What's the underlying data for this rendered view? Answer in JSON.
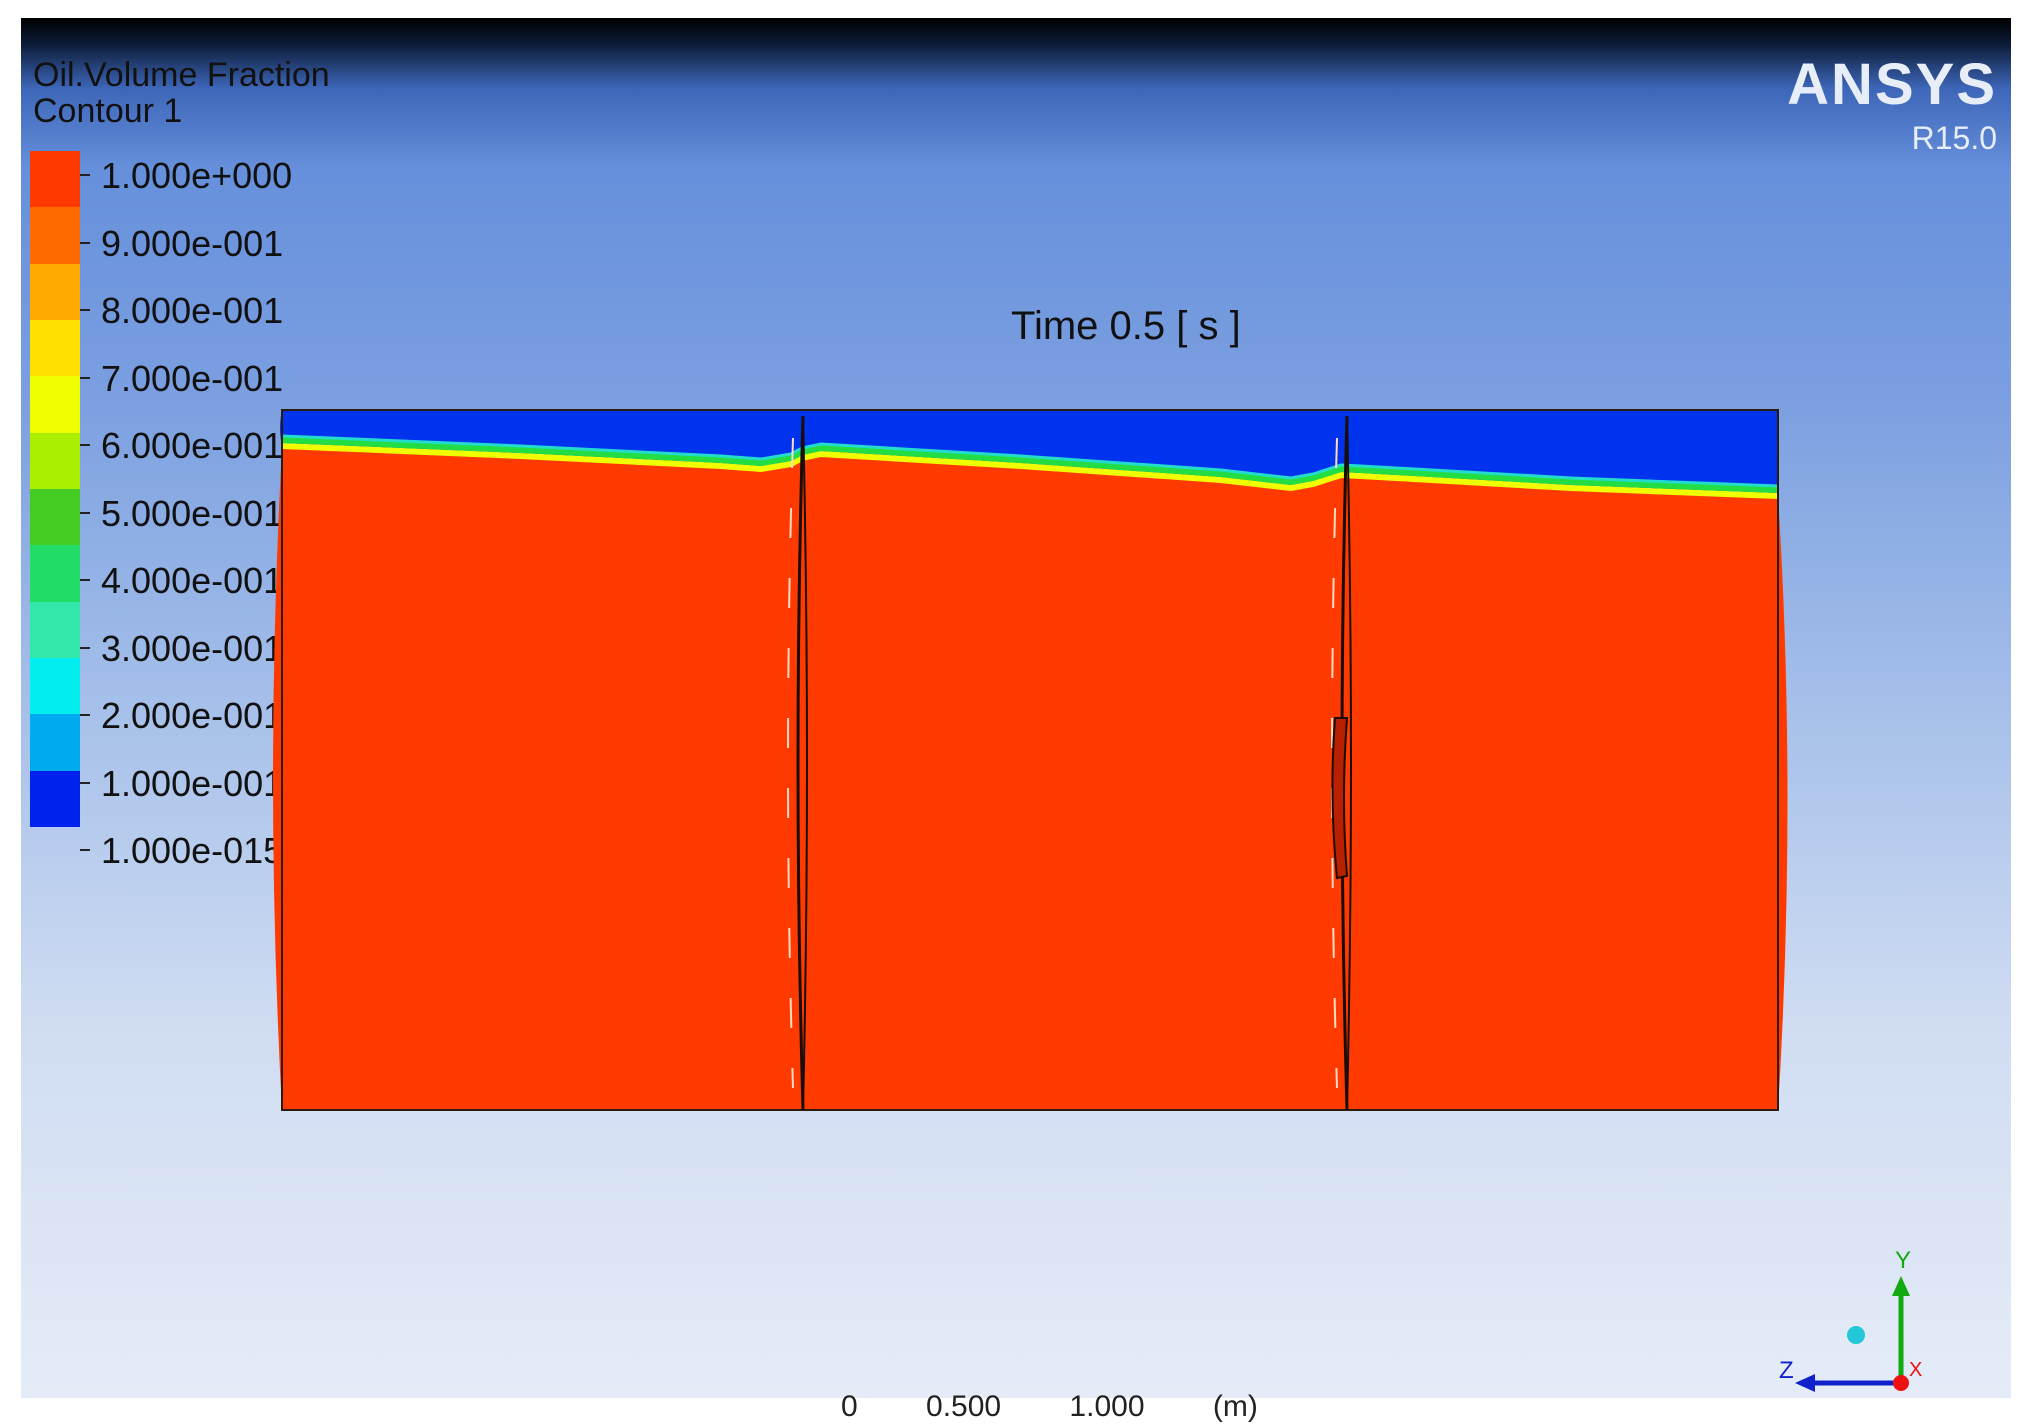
{
  "legend": {
    "title": "Oil.Volume Fraction",
    "subtitle": "Contour 1",
    "ticks": [
      "1.000e+000",
      "9.000e-001",
      "8.000e-001",
      "7.000e-001",
      "6.000e-001",
      "5.000e-001",
      "4.000e-001",
      "3.000e-001",
      "2.000e-001",
      "1.000e-001",
      "1.000e-015"
    ],
    "band_colors": [
      "#ff3a00",
      "#ff6a00",
      "#ffaa00",
      "#ffe000",
      "#f0ff00",
      "#aaee00",
      "#44cc22",
      "#22dd66",
      "#33e6aa",
      "#00eeee",
      "#00aaee",
      "#0022ee"
    ]
  },
  "branding": {
    "logo": "ANSYS",
    "version": "R15.0"
  },
  "time_label": "Time 0.5 [ s ]",
  "colors": {
    "oil": "#ff3a00",
    "air": "#0033ee",
    "interface_green": "#22dd44",
    "interface_yellow": "#f0ff00"
  },
  "scale_bar": "0 0.500 1.000 (m)",
  "axes": {
    "y": "Y",
    "z": "Z",
    "x": "X"
  }
}
